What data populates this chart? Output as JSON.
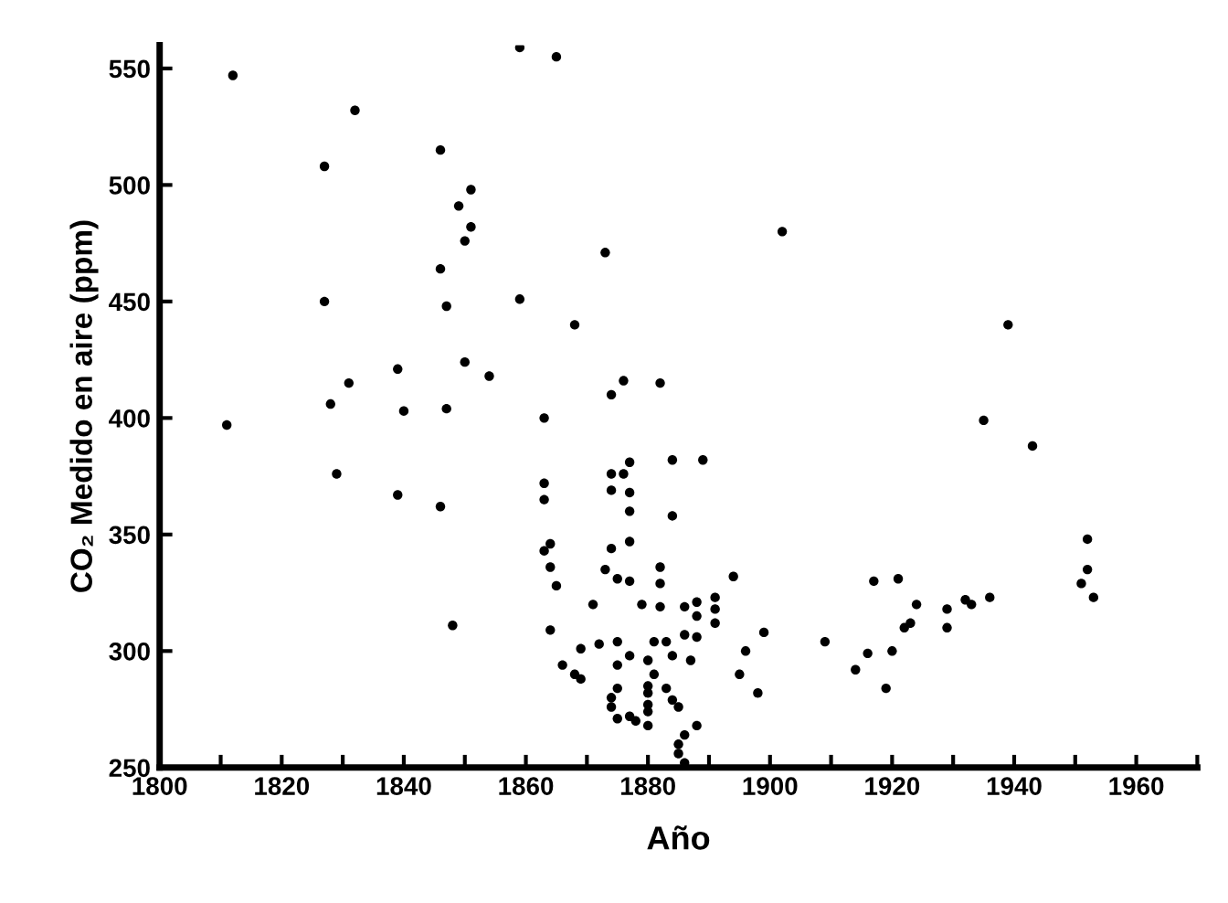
{
  "chart_data": {
    "type": "scatter",
    "xlabel": "Año",
    "ylabel": "CO₂ Medido en aire (ppm)",
    "marker": "circle",
    "grid": false,
    "xlim": [
      1800,
      1970
    ],
    "ylim": [
      250,
      560
    ],
    "xticks": [
      1800,
      {
        "value": 1810,
        "label": null
      },
      1820,
      {
        "value": 1830,
        "label": null
      },
      1840,
      {
        "value": 1850,
        "label": null
      },
      1860,
      {
        "value": 1870,
        "label": null
      },
      1880,
      {
        "value": 1890,
        "label": null
      },
      1900,
      {
        "value": 1910,
        "label": null
      },
      1920,
      {
        "value": 1930,
        "label": null
      },
      1940,
      {
        "value": 1950,
        "label": null
      },
      1960,
      {
        "value": 1970,
        "label": null
      }
    ],
    "yticks": [
      250,
      300,
      350,
      400,
      450,
      500,
      550
    ],
    "series": [
      {
        "color": "#000000",
        "x": [
          1812,
          1811,
          1832,
          1827,
          1846,
          1851,
          1849,
          1851,
          1850,
          1846,
          1827,
          1847,
          1859,
          1859,
          1839,
          1850,
          1854,
          1831,
          1828,
          1840,
          1847,
          1829,
          1839,
          1846,
          1848,
          1865,
          1902,
          1873,
          1868,
          1876,
          1874,
          1882,
          1863,
          1939,
          1935,
          1943,
          1863,
          1863,
          1877,
          1884,
          1889,
          1874,
          1876,
          1874,
          1877,
          1877,
          1884,
          1864,
          1863,
          1864,
          1877,
          1874,
          1882,
          1873,
          1894,
          1952,
          1952,
          1865,
          1875,
          1877,
          1882,
          1871,
          1879,
          1882,
          1886,
          1888,
          1891,
          1891,
          1888,
          1891,
          1864,
          1886,
          1888,
          1883,
          1881,
          1877,
          1872,
          1875,
          1884,
          1869,
          1866,
          1868,
          1869,
          1875,
          1880,
          1887,
          1881,
          1883,
          1880,
          1875,
          1880,
          1884,
          1874,
          1874,
          1880,
          1880,
          1885,
          1877,
          1875,
          1878,
          1880,
          1888,
          1886,
          1885,
          1885,
          1886,
          1896,
          1899,
          1895,
          1898,
          1909,
          1917,
          1921,
          1924,
          1923,
          1922,
          1920,
          1916,
          1914,
          1919,
          1929,
          1932,
          1933,
          1936,
          1929,
          1951,
          1953
        ],
        "values": [
          547,
          397,
          532,
          508,
          515,
          498,
          491,
          482,
          476,
          464,
          450,
          448,
          451,
          559,
          421,
          424,
          418,
          415,
          406,
          403,
          404,
          376,
          367,
          362,
          311,
          555,
          480,
          471,
          440,
          416,
          410,
          415,
          400,
          440,
          399,
          388,
          372,
          365,
          381,
          382,
          382,
          376,
          376,
          369,
          368,
          360,
          358,
          346,
          343,
          336,
          347,
          344,
          336,
          335,
          332,
          348,
          335,
          328,
          331,
          330,
          329,
          320,
          320,
          319,
          319,
          321,
          323,
          318,
          315,
          312,
          309,
          307,
          306,
          304,
          304,
          298,
          303,
          304,
          298,
          301,
          294,
          290,
          288,
          294,
          296,
          296,
          290,
          284,
          285,
          284,
          282,
          279,
          280,
          276,
          277,
          274,
          276,
          272,
          271,
          270,
          268,
          268,
          264,
          260,
          256,
          252,
          300,
          308,
          290,
          282,
          304,
          330,
          331,
          320,
          312,
          310,
          300,
          299,
          292,
          284,
          318,
          322,
          320,
          323,
          310,
          329,
          323
        ]
      }
    ]
  }
}
